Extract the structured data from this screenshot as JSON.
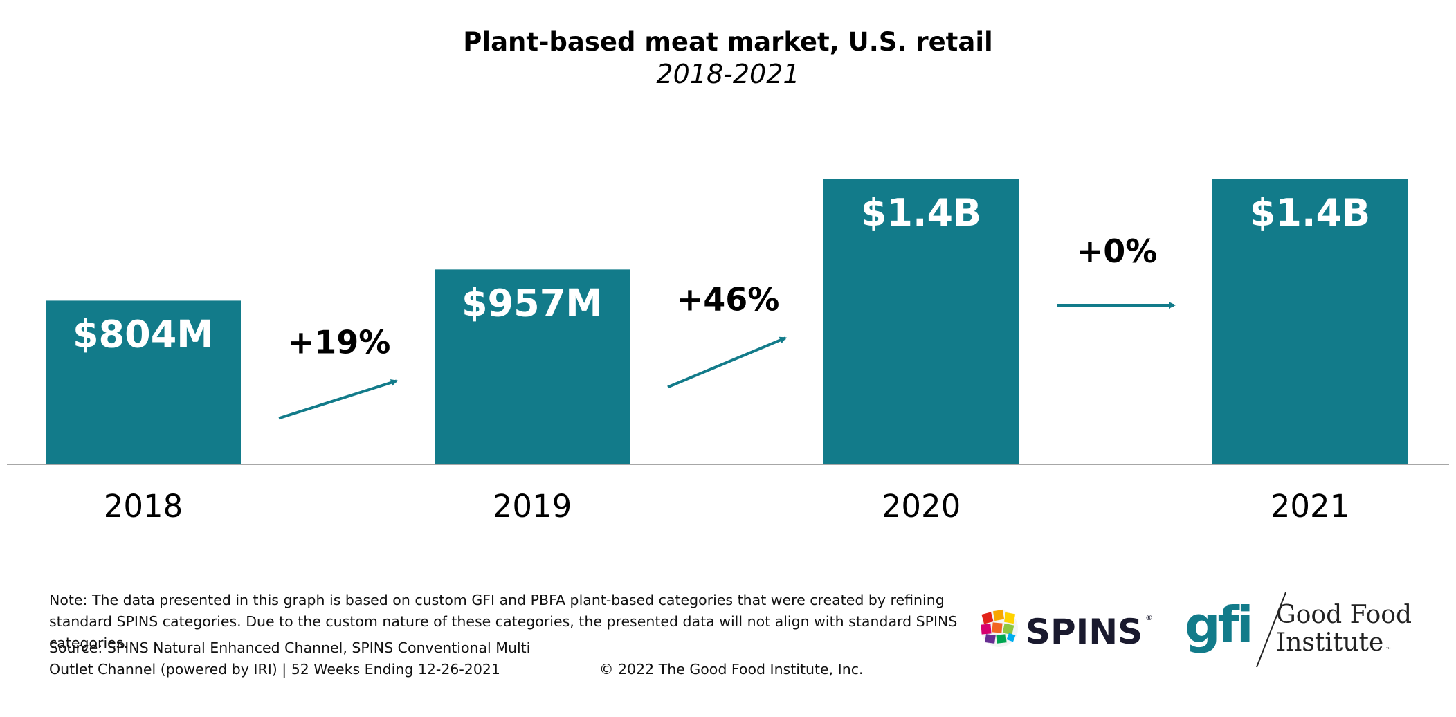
{
  "chart_data": {
    "type": "bar",
    "title": "Plant-based meat market, U.S. retail",
    "subtitle": "2018-2021",
    "categories": [
      "2018",
      "2019",
      "2020",
      "2021"
    ],
    "values": [
      804,
      957,
      1400,
      1400
    ],
    "value_unit": "$M",
    "data_labels": [
      "$804M",
      "$957M",
      "$1.4B",
      "$1.4B"
    ],
    "growth_labels": [
      "+19%",
      "+46%",
      "+0%"
    ],
    "ylim": [
      0,
      1400
    ],
    "bar_color": "#127b8a",
    "arrow_color": "#127b8a",
    "grid": false,
    "legend": "none"
  },
  "footer": {
    "note": "Note: The data presented in this graph is based on custom GFI and PBFA plant-based categories that were created by refining standard SPINS categories. Due to the custom nature of these categories, the presented data will not align with standard SPINS categories.",
    "source": "Source: SPINS Natural Enhanced Channel, SPINS Conventional Multi Outlet Channel (powered by IRI) | 52 Weeks Ending 12-26-2021",
    "copyright": "© 2022 The Good Food Institute, Inc."
  },
  "logos": {
    "spins": "SPINS",
    "spins_mark": "®",
    "gfi": "gfi",
    "gfi_line1": "Good Food",
    "gfi_line2": "Institute",
    "gfi_mark": "™"
  }
}
